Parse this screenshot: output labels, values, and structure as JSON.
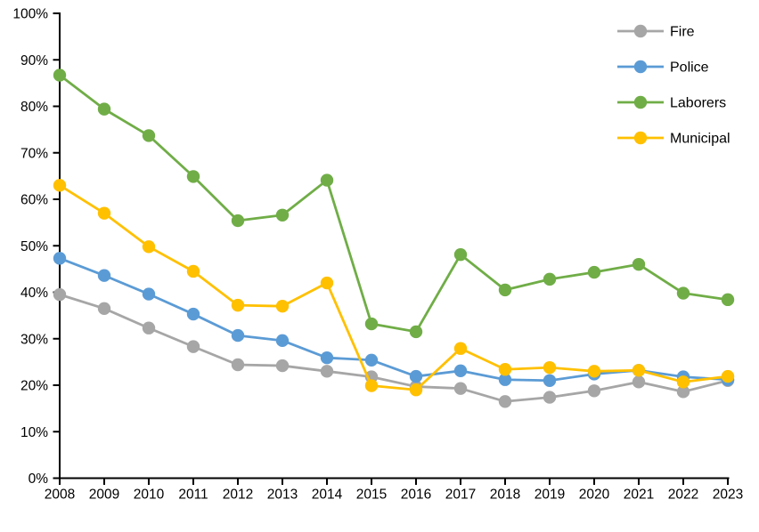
{
  "chart_data": {
    "type": "line",
    "title": "",
    "xlabel": "",
    "ylabel": "",
    "categories": [
      "2008",
      "2009",
      "2010",
      "2011",
      "2012",
      "2013",
      "2014",
      "2015",
      "2016",
      "2017",
      "2018",
      "2019",
      "2020",
      "2021",
      "2022",
      "2023"
    ],
    "series": [
      {
        "name": "Fire",
        "color": "#A6A6A6",
        "values": [
          39.5,
          36.5,
          32.3,
          28.3,
          24.4,
          24.2,
          23.0,
          21.8,
          19.7,
          19.3,
          16.5,
          17.4,
          18.8,
          20.7,
          18.6,
          21.0
        ]
      },
      {
        "name": "Police",
        "color": "#5B9BD5",
        "values": [
          47.3,
          43.6,
          39.6,
          35.3,
          30.7,
          29.6,
          25.9,
          25.4,
          21.9,
          23.1,
          21.2,
          21.0,
          22.4,
          23.2,
          21.8,
          21.2
        ]
      },
      {
        "name": "Laborers",
        "color": "#70AD47",
        "values": [
          86.7,
          79.4,
          73.7,
          64.9,
          55.4,
          56.6,
          64.1,
          33.2,
          31.5,
          48.1,
          40.5,
          42.8,
          44.3,
          46.0,
          39.8,
          38.4
        ]
      },
      {
        "name": "Municipal",
        "color": "#FFC000",
        "values": [
          63.0,
          57.0,
          49.8,
          44.5,
          37.2,
          37.0,
          42.0,
          19.9,
          19.0,
          27.9,
          23.4,
          23.8,
          23.0,
          23.2,
          20.7,
          21.9
        ]
      }
    ],
    "ylim": [
      0,
      100
    ],
    "ytick_step": 10,
    "ytick_suffix": "%",
    "grid": false,
    "axis_color": "#000000",
    "legend_position": "top-right",
    "legend_entries": [
      "Fire",
      "Police",
      "Laborers",
      "Municipal"
    ]
  }
}
